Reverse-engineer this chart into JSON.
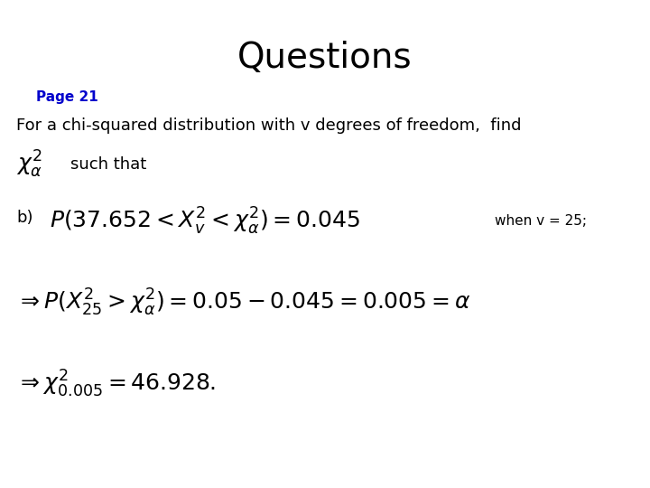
{
  "title": "Questions",
  "title_fontsize": 28,
  "title_color": "#000000",
  "page_label": "Page 21",
  "page_label_color": "#0000CC",
  "page_label_fontsize": 11,
  "bg_color": "#ffffff",
  "body_text": "For a chi-squared distribution with v degrees of freedom,  find",
  "body_fontsize": 13,
  "chi_symbol_intro": "$\\chi^{2}_{\\alpha}$",
  "chi_symbol_fontsize": 18,
  "such_that_text": "such that",
  "such_that_fontsize": 13,
  "part_b_label": "b)",
  "part_b_label_fontsize": 13,
  "formula_b": "$P(37.652 < X^{2}_{v} < \\chi^{2}_{\\alpha}) = 0.045$",
  "formula_b_fontsize": 18,
  "when_text": "when v = 25;",
  "when_fontsize": 11,
  "formula_2": "$\\Rightarrow P(X^{2}_{25} > \\chi^{2}_{\\alpha}) = 0.05 - 0.045 = 0.005 = \\alpha$",
  "formula_2_fontsize": 18,
  "formula_3": "$\\Rightarrow \\chi^{2}_{0.005} = 46.928.$",
  "formula_3_fontsize": 18
}
